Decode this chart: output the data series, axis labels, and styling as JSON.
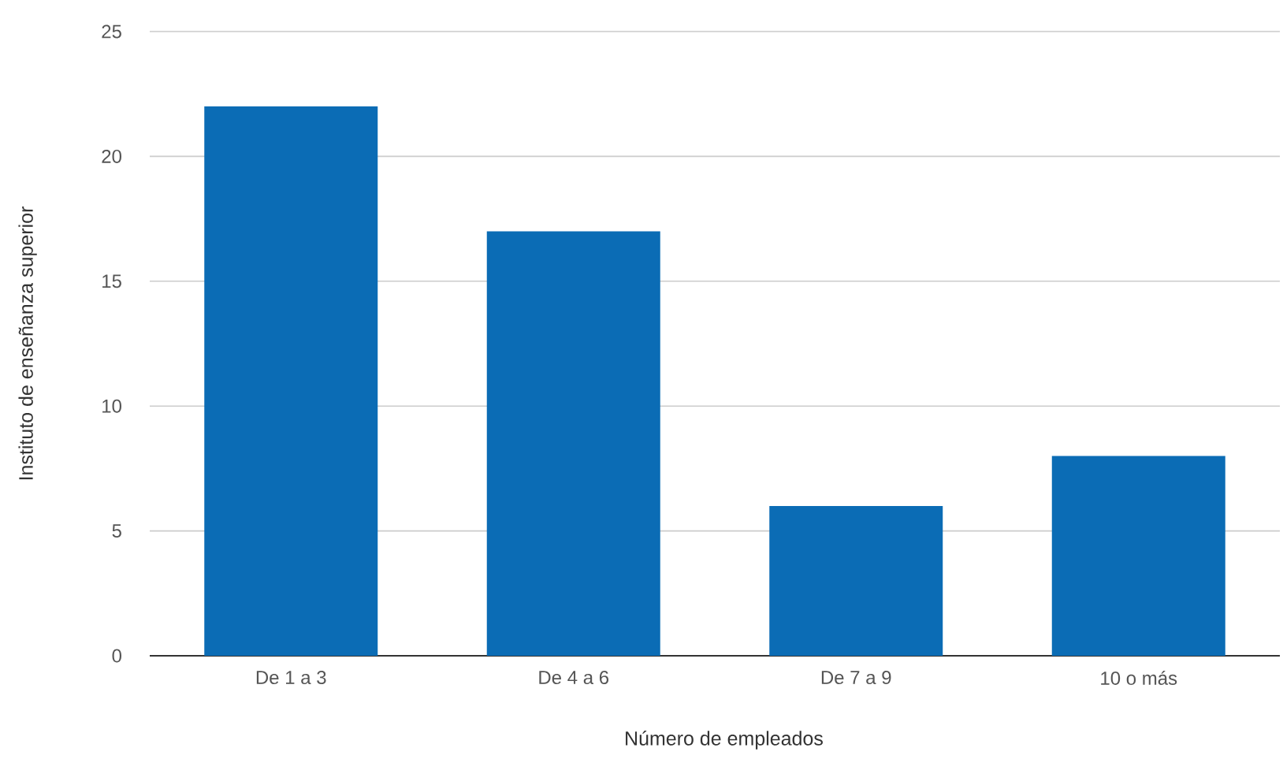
{
  "chart_data": {
    "type": "bar",
    "xlabel": "Número de empleados",
    "ylabel": "Instituto de enseñanza superior",
    "categories": [
      "De 1 a 3",
      "De 4 a 6",
      "De 7 a 9",
      "10 o más"
    ],
    "values": [
      22,
      17,
      6,
      8
    ],
    "color": "#0b6cb5",
    "ylim": [
      0,
      25
    ],
    "yticks": [
      0,
      5,
      10,
      15,
      20,
      25
    ],
    "grid": "y"
  }
}
